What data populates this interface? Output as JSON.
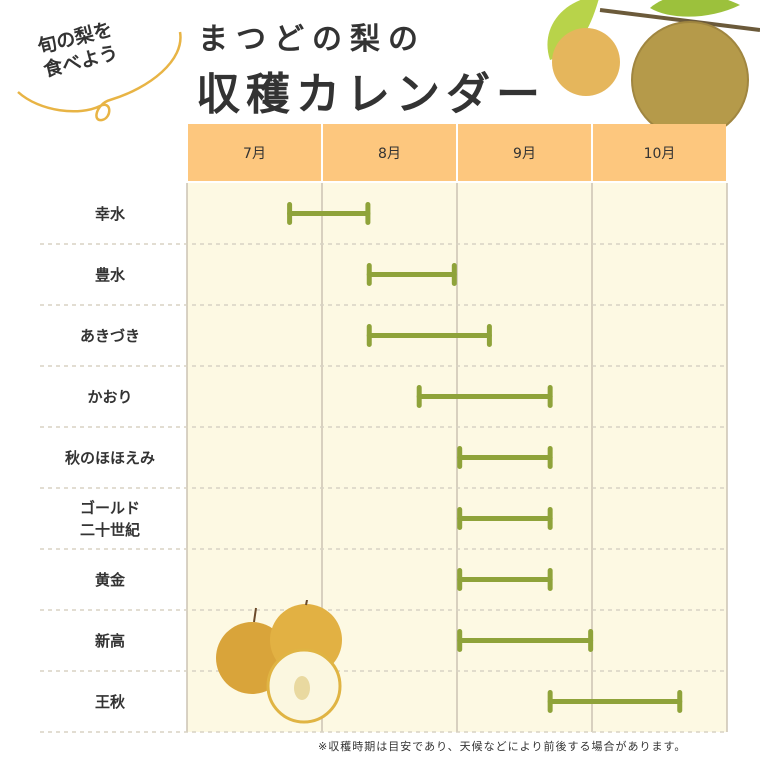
{
  "badge": {
    "text": "旬の梨を\n食べよう"
  },
  "title": {
    "line1": "まつどの梨の",
    "line2": "収穫カレンダー"
  },
  "chart_data": {
    "type": "gantt",
    "categories": [
      "7月",
      "8月",
      "9月",
      "10月"
    ],
    "series": [
      {
        "label": "幸水",
        "start": 7.76,
        "end": 8.34
      },
      {
        "label": "豊水",
        "start": 8.35,
        "end": 8.98
      },
      {
        "label": "あきづき",
        "start": 8.35,
        "end": 9.24
      },
      {
        "label": "かおり",
        "start": 8.72,
        "end": 9.69
      },
      {
        "label": "秋のほほえみ",
        "start": 9.02,
        "end": 9.69
      },
      {
        "label": "ゴールド\n二十世紀",
        "start": 9.02,
        "end": 9.69
      },
      {
        "label": "黄金",
        "start": 9.02,
        "end": 9.69
      },
      {
        "label": "新高",
        "start": 9.02,
        "end": 9.99
      },
      {
        "label": "王秋",
        "start": 9.69,
        "end": 10.65
      }
    ],
    "xlim": [
      7,
      11
    ],
    "colors": {
      "header": "#fdc77e",
      "cell": "#fdf9e3",
      "bar": "#8fa33a",
      "grid": "#cbc3b3"
    }
  },
  "footnote": "※収穫時期は目安であり、天候などにより前後する場合があります。"
}
